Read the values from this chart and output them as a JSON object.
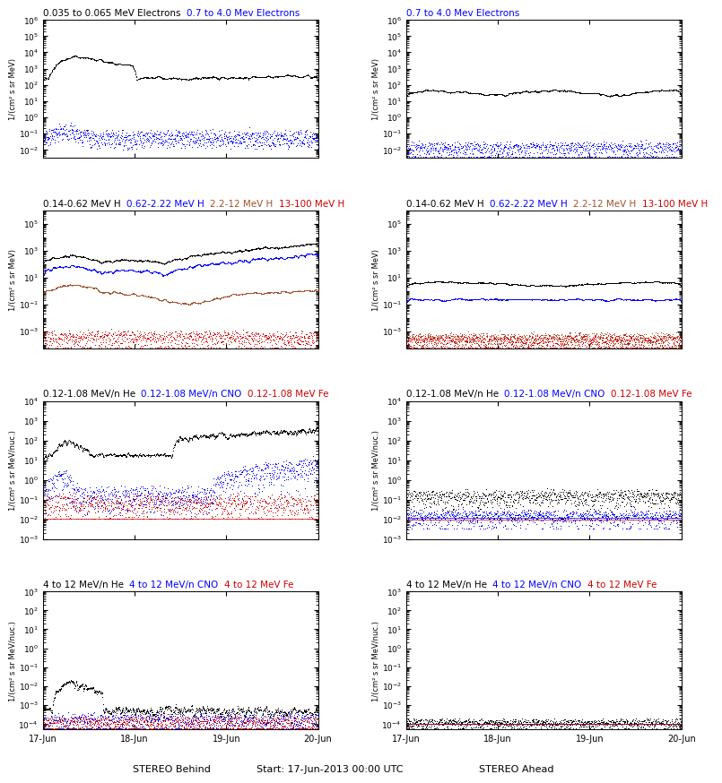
{
  "titles": {
    "r1_left": [
      [
        "0.035 to 0.065 MeV Electrons",
        "#000000"
      ],
      [
        "0.7 to 4.0 Mev Electrons",
        "#0000ff"
      ]
    ],
    "r1_right": [
      [
        "0.7 to 4.0 Mev Electrons",
        "#0000ff"
      ]
    ],
    "r2_left": [
      [
        "0.14-0.62 MeV H",
        "#000000"
      ],
      [
        "0.62-2.22 MeV H",
        "#0000ff"
      ],
      [
        "2.2-12 MeV H",
        "#a0522d"
      ],
      [
        "13-100 MeV H",
        "#cc0000"
      ]
    ],
    "r2_right": [
      [
        "0.14-0.62 MeV H",
        "#000000"
      ],
      [
        "0.62-2.22 MeV H",
        "#0000ff"
      ],
      [
        "2.2-12 MeV H",
        "#a0522d"
      ],
      [
        "13-100 MeV H",
        "#cc0000"
      ]
    ],
    "r3_left": [
      [
        "0.12-1.08 MeV/n He",
        "#000000"
      ],
      [
        "0.12-1.08 MeV/n CNO",
        "#0000ff"
      ],
      [
        "0.12-1.08 MeV Fe",
        "#cc0000"
      ]
    ],
    "r3_right": [
      [
        "0.12-1.08 MeV/n He",
        "#000000"
      ],
      [
        "0.12-1.08 MeV/n CNO",
        "#0000ff"
      ],
      [
        "0.12-1.08 MeV Fe",
        "#cc0000"
      ]
    ],
    "r4_left": [
      [
        "4 to 12 MeV/n He",
        "#000000"
      ],
      [
        "4 to 12 MeV/n CNO",
        "#0000ff"
      ],
      [
        "4 to 12 MeV Fe",
        "#cc0000"
      ]
    ],
    "r4_right": [
      [
        "4 to 12 MeV/n He",
        "#000000"
      ],
      [
        "4 to 12 MeV/n CNO",
        "#0000ff"
      ],
      [
        "4 to 12 MeV Fe",
        "#cc0000"
      ]
    ]
  },
  "ylims": {
    "r1": [
      0.003,
      1000000.0
    ],
    "r2": [
      5e-05,
      1000000.0
    ],
    "r3": [
      0.001,
      10000.0
    ],
    "r4": [
      5e-05,
      1000.0
    ]
  },
  "ylabels": {
    "electrons": "1/(cm² s sr MeV)",
    "protons": "1/(cm² s sr MeV)",
    "heavy": "1/(cm² s sr MeV/nuc.)"
  },
  "xtick_labels": [
    "17-Jun",
    "18-Jun",
    "19-Jun",
    "20-Jun"
  ],
  "xlabel_left": "STEREO Behind",
  "xlabel_center": "Start: 17-Jun-2013 00:00 UTC",
  "xlabel_right": "STEREO Ahead",
  "colors": {
    "black": "#000000",
    "blue": "#0000ff",
    "brown": "#a0522d",
    "red": "#cc0000"
  }
}
